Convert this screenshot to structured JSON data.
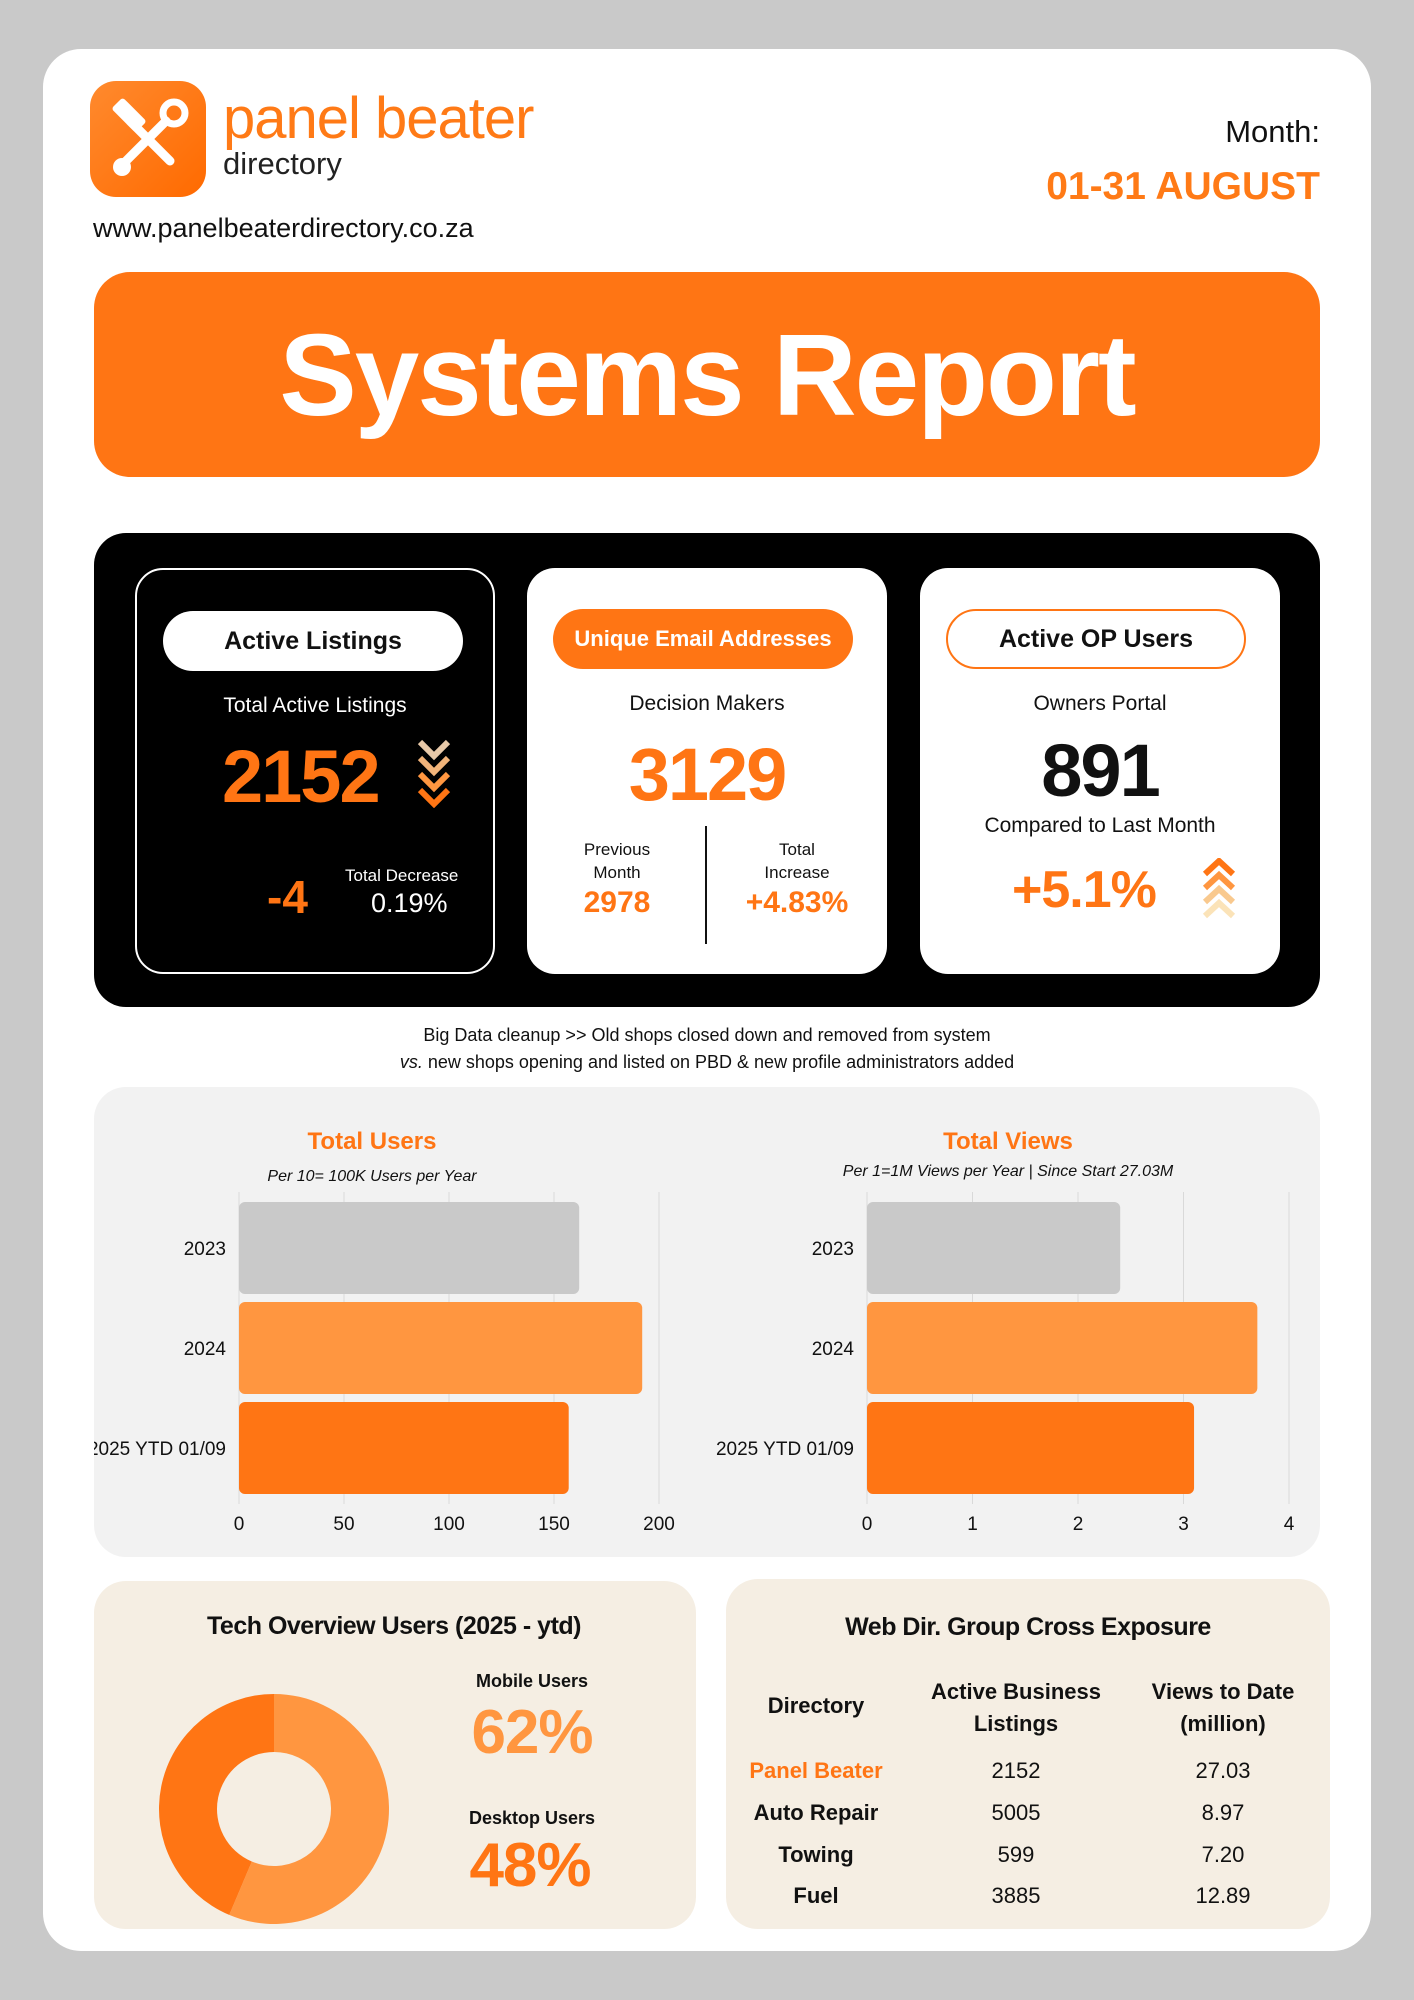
{
  "header": {
    "brand_main": "panel beater",
    "brand_sub": "directory",
    "website": "www.panelbeaterdirectory.co.za",
    "month_label": "Month:",
    "month_value": "01-31 AUGUST",
    "logo_icon": "hammer-wrench-icon"
  },
  "banner": {
    "title": "Systems Report"
  },
  "colors": {
    "accent": "#ff7514",
    "light_accent": "#ff9640",
    "gray_bar": "#c9c9c9",
    "panel_bg": "#f2f2f2",
    "cream": "#f5eee3"
  },
  "kpis": {
    "listings": {
      "pill": "Active Listings",
      "subtitle": "Total Active Listings",
      "value": "2152",
      "delta": "-4",
      "delta_label": "Total Decrease",
      "delta_pct": "0.19%",
      "icon": "chevron-down-icon"
    },
    "emails": {
      "pill": "Unique Email Addresses",
      "subtitle": "Decision Makers",
      "value": "3129",
      "prev_label_1": "Previous",
      "prev_label_2": "Month",
      "prev_value": "2978",
      "inc_label_1": "Total",
      "inc_label_2": "Increase",
      "inc_value": "+4.83%"
    },
    "op_users": {
      "pill": "Active OP Users",
      "subtitle": "Owners Portal",
      "value": "891",
      "compare_label": "Compared to Last Month",
      "change": "+5.1%",
      "icon": "chevron-up-icon"
    }
  },
  "note": {
    "line1": "Big Data cleanup >> Old shops closed down and removed from system",
    "line2_em": "vs.",
    "line2_rest": " new shops opening and listed on PBD & new profile administrators added"
  },
  "chart_data": [
    {
      "type": "bar",
      "orientation": "horizontal",
      "title": "Total Users",
      "subtitle": "Per 10= 100K Users per Year",
      "categories": [
        "2023",
        "2024",
        "2025 YTD 01/09"
      ],
      "values": [
        162,
        192,
        157
      ],
      "xlim": [
        0,
        200
      ],
      "ticks": [
        0,
        50,
        100,
        150,
        200
      ],
      "colors": [
        "#c9c9c9",
        "#ff9640",
        "#ff7514"
      ],
      "grid": true
    },
    {
      "type": "bar",
      "orientation": "horizontal",
      "title": "Total Views",
      "subtitle": "Per 1=1M Views per Year | Since Start 27.03M",
      "categories": [
        "2023",
        "2024",
        "2025 YTD 01/09"
      ],
      "values": [
        2.4,
        3.7,
        3.1
      ],
      "xlim": [
        0,
        4
      ],
      "ticks": [
        0,
        1,
        2,
        3,
        4
      ],
      "colors": [
        "#c9c9c9",
        "#ff9640",
        "#ff7514"
      ],
      "grid": true
    },
    {
      "type": "pie",
      "title": "Tech Overview Users (2025 - ytd)",
      "categories": [
        "Mobile Users",
        "Desktop Users"
      ],
      "values": [
        62,
        48
      ],
      "labels": [
        "62%",
        "48%"
      ],
      "colors": [
        "#ff9640",
        "#ff7514"
      ]
    }
  ],
  "web_dir": {
    "title": "Web Dir. Group Cross Exposure",
    "headers": [
      "Directory",
      "Active Business Listings",
      "Views to Date (million)"
    ],
    "header_lines": [
      [
        "Directory"
      ],
      [
        "Active Business",
        "Listings"
      ],
      [
        "Views to Date",
        "(million)"
      ]
    ],
    "rows": [
      [
        "Panel Beater",
        "2152",
        "27.03"
      ],
      [
        "Auto Repair",
        "5005",
        "8.97"
      ],
      [
        "Towing",
        "599",
        "7.20"
      ],
      [
        "Fuel",
        "3885",
        "12.89"
      ]
    ]
  }
}
